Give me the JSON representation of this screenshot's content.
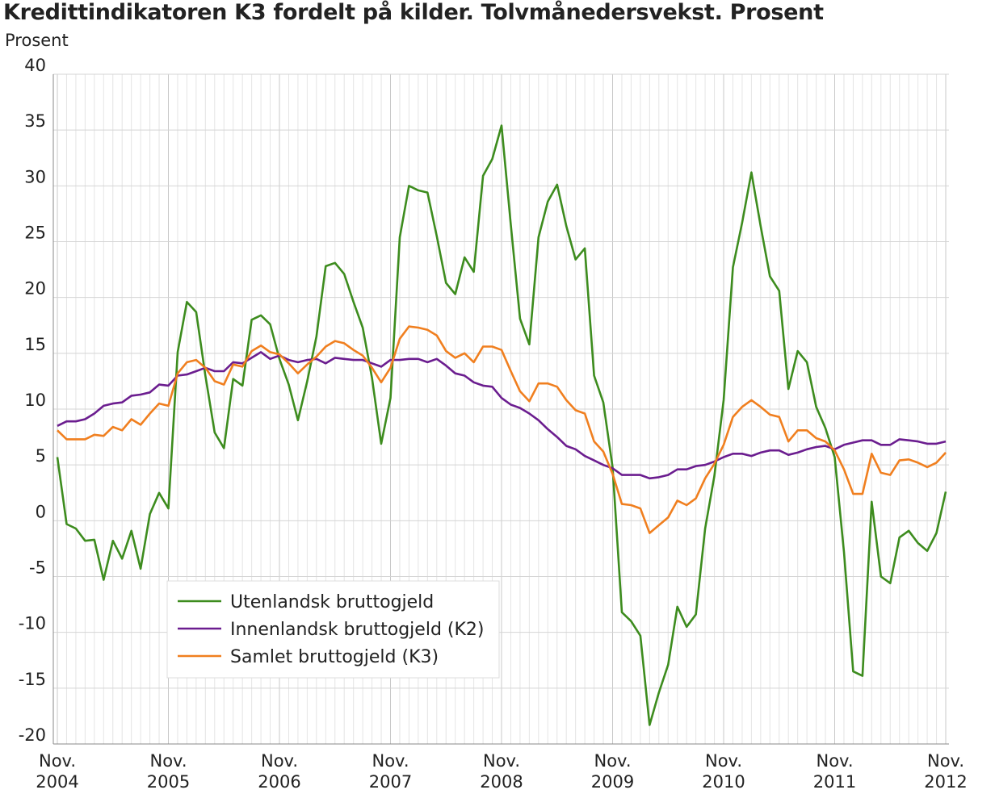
{
  "chart_data": {
    "type": "line",
    "title": "Kredittindikatoren K3 fordelt på kilder. Tolvmånedersvekst. Prosent",
    "ylabel": "Prosent",
    "xlabel": "",
    "ylim": [
      -20,
      40
    ],
    "yticks": [
      40,
      35,
      30,
      25,
      20,
      15,
      10,
      5,
      0,
      -5,
      -10,
      -15,
      -20
    ],
    "ytick_labels": [
      "40",
      "35",
      "30",
      "25",
      "20",
      "15",
      "10",
      "5",
      "0",
      "-5",
      "-10",
      "-15",
      "-20"
    ],
    "x_start": "Nov. 2004",
    "x_end": "Nov. 2012",
    "x_frequency": "monthly",
    "xtick_labels": [
      {
        "month": "Nov.",
        "year": "2004",
        "index": 0
      },
      {
        "month": "Nov.",
        "year": "2005",
        "index": 12
      },
      {
        "month": "Nov.",
        "year": "2006",
        "index": 24
      },
      {
        "month": "Nov.",
        "year": "2007",
        "index": 36
      },
      {
        "month": "Nov.",
        "year": "2008",
        "index": 48
      },
      {
        "month": "Nov.",
        "year": "2009",
        "index": 60
      },
      {
        "month": "Nov.",
        "year": "2010",
        "index": 72
      },
      {
        "month": "Nov.",
        "year": "2011",
        "index": 84
      },
      {
        "month": "Nov.",
        "year": "2012",
        "index": 96
      }
    ],
    "grid": true,
    "legend_placement": "bottom-left",
    "series": [
      {
        "name": "Utenlandsk bruttogjeld",
        "color": "#3d8c1e",
        "values": [
          5.7,
          -0.3,
          -0.7,
          -1.8,
          -1.7,
          -5.3,
          -1.8,
          -3.4,
          -0.9,
          -4.3,
          0.6,
          2.5,
          1.1,
          15.1,
          19.6,
          18.7,
          13.0,
          7.9,
          6.5,
          12.7,
          12.1,
          18.0,
          18.4,
          17.6,
          14.5,
          12.2,
          9.0,
          12.5,
          16.5,
          22.8,
          23.1,
          22.1,
          19.6,
          17.3,
          12.8,
          6.9,
          11.0,
          25.4,
          30.0,
          29.6,
          29.4,
          25.5,
          21.3,
          20.3,
          23.6,
          22.3,
          30.9,
          32.4,
          35.4,
          26.5,
          18.1,
          15.8,
          25.4,
          28.6,
          30.1,
          26.4,
          23.4,
          24.4,
          13.0,
          10.6,
          4.8,
          -8.2,
          -9.0,
          -10.3,
          -18.3,
          -15.4,
          -12.9,
          -7.7,
          -9.5,
          -8.4,
          -0.7,
          4.0,
          10.8,
          22.7,
          26.7,
          31.2,
          26.4,
          21.9,
          20.6,
          11.8,
          15.2,
          14.2,
          10.2,
          8.3,
          5.7,
          -2.8,
          -13.5,
          -13.9,
          1.7,
          -5.0,
          -5.6,
          -1.5,
          -0.9,
          -2.0,
          -2.7,
          -1.1,
          2.6
        ]
      },
      {
        "name": "Innenlandsk bruttogjeld (K2)",
        "color": "#6b1d8f",
        "values": [
          8.5,
          8.9,
          8.9,
          9.1,
          9.6,
          10.3,
          10.5,
          10.6,
          11.2,
          11.3,
          11.5,
          12.2,
          12.1,
          13.0,
          13.1,
          13.4,
          13.7,
          13.4,
          13.4,
          14.2,
          14.1,
          14.6,
          15.1,
          14.5,
          14.8,
          14.4,
          14.2,
          14.4,
          14.5,
          14.1,
          14.6,
          14.5,
          14.4,
          14.4,
          14.1,
          13.8,
          14.4,
          14.4,
          14.5,
          14.5,
          14.2,
          14.5,
          13.9,
          13.2,
          13.0,
          12.4,
          12.1,
          12.0,
          11.0,
          10.4,
          10.1,
          9.6,
          9.0,
          8.2,
          7.5,
          6.7,
          6.4,
          5.8,
          5.4,
          5.0,
          4.7,
          4.1,
          4.1,
          4.1,
          3.8,
          3.9,
          4.1,
          4.6,
          4.6,
          4.9,
          5.0,
          5.3,
          5.7,
          6.0,
          6.0,
          5.8,
          6.1,
          6.3,
          6.3,
          5.9,
          6.1,
          6.4,
          6.6,
          6.7,
          6.4,
          6.8,
          7.0,
          7.2,
          7.2,
          6.8,
          6.8,
          7.3,
          7.2,
          7.1,
          6.9,
          6.9,
          7.1
        ]
      },
      {
        "name": "Samlet bruttogjeld (K3)",
        "color": "#f07f1f",
        "values": [
          8.1,
          7.3,
          7.3,
          7.3,
          7.7,
          7.6,
          8.4,
          8.1,
          9.1,
          8.6,
          9.6,
          10.5,
          10.3,
          13.2,
          14.2,
          14.4,
          13.7,
          12.5,
          12.2,
          14.0,
          13.8,
          15.2,
          15.7,
          15.1,
          14.9,
          14.1,
          13.2,
          14.0,
          14.7,
          15.6,
          16.1,
          15.9,
          15.3,
          14.8,
          13.7,
          12.4,
          13.7,
          16.3,
          17.4,
          17.3,
          17.1,
          16.6,
          15.2,
          14.6,
          15.0,
          14.2,
          15.6,
          15.6,
          15.3,
          13.4,
          11.6,
          10.7,
          12.3,
          12.3,
          12.0,
          10.8,
          9.9,
          9.6,
          7.1,
          6.2,
          4.2,
          1.5,
          1.4,
          1.1,
          -1.1,
          -0.4,
          0.3,
          1.8,
          1.4,
          2.0,
          3.8,
          5.1,
          6.8,
          9.3,
          10.2,
          10.8,
          10.2,
          9.5,
          9.3,
          7.1,
          8.1,
          8.1,
          7.4,
          7.1,
          6.3,
          4.6,
          2.4,
          2.4,
          6.0,
          4.3,
          4.1,
          5.4,
          5.5,
          5.2,
          4.8,
          5.2,
          6.1
        ]
      }
    ]
  }
}
